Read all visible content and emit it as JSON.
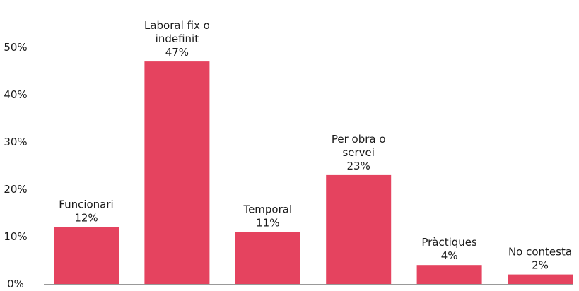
{
  "chart_data": {
    "type": "bar",
    "categories": [
      [
        "Funcionari"
      ],
      [
        "Laboral fix o",
        "indefinit"
      ],
      [
        "Temporal"
      ],
      [
        "Per obra o",
        "servei"
      ],
      [
        "Pràctiques"
      ],
      [
        "No contesta"
      ]
    ],
    "values": [
      12,
      47,
      11,
      23,
      4,
      2
    ],
    "value_labels": [
      "12%",
      "47%",
      "11%",
      "23%",
      "4%",
      "2%"
    ],
    "y_ticks": [
      "0%",
      "10%",
      "20%",
      "30%",
      "40%",
      "50%"
    ],
    "y_tick_values": [
      0,
      10,
      20,
      30,
      40,
      50
    ],
    "ylim": [
      0,
      50
    ],
    "bar_color": "#e5435f",
    "axis_color": "#999999",
    "grid": false,
    "legend": false
  }
}
